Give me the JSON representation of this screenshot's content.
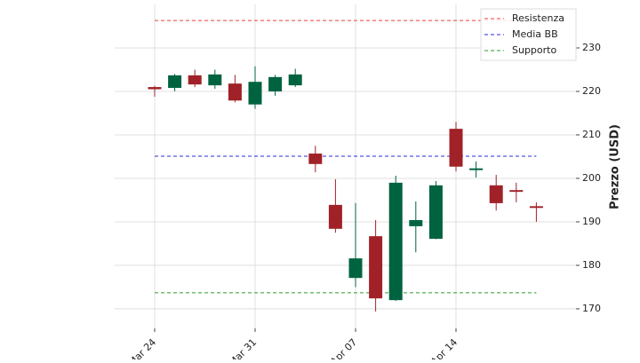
{
  "chart_data": {
    "type": "candlestick",
    "ylabel": "Prezzo (USD)",
    "categories": [
      "Mar 24",
      null,
      null,
      null,
      null,
      "Mar 31",
      null,
      null,
      null,
      null,
      "Apr 07",
      null,
      null,
      null,
      null,
      "Apr 14",
      null,
      null,
      null,
      null
    ],
    "open": [
      221,
      220.8,
      223.7,
      221.4,
      221.8,
      217,
      220,
      221.4,
      205.7,
      193.9,
      177.1,
      186.7,
      172,
      189,
      186.1,
      211.4,
      201.9,
      198.4,
      197.3,
      193.6
    ],
    "high": [
      221.3,
      224,
      225,
      225,
      223.8,
      225.8,
      223.8,
      225.2,
      207.5,
      199.8,
      194.3,
      190.4,
      200.6,
      194.7,
      199.4,
      213,
      203.9,
      200.8,
      199,
      194.5
    ],
    "low": [
      218.8,
      220,
      221,
      220.6,
      217.5,
      216,
      219,
      221,
      201.4,
      187.5,
      175,
      169.4,
      171.8,
      183,
      186,
      201.6,
      200.2,
      192.6,
      194.5,
      190
    ],
    "close": [
      220.5,
      223.7,
      221.6,
      223.9,
      217.9,
      222.2,
      223.3,
      223.9,
      203.3,
      188.4,
      181.6,
      172.4,
      199,
      190.4,
      198.4,
      202.7,
      202.3,
      194.3,
      196.9,
      193.2
    ],
    "up_color": "#006340",
    "down_color": "#a02128",
    "hlines": [
      {
        "name": "Resistenza",
        "color": "#e8413c",
        "value": 236.3
      },
      {
        "name": "Media BB",
        "color": "#2b2bd9",
        "value": 205.1
      },
      {
        "name": "Supporto",
        "color": "#2e9a2e",
        "value": 173.7
      }
    ],
    "ylim": [
      165.5,
      240
    ],
    "yticks": [
      170,
      180,
      190,
      200,
      210,
      220,
      230
    ],
    "grid": true,
    "legend": "upper right"
  }
}
